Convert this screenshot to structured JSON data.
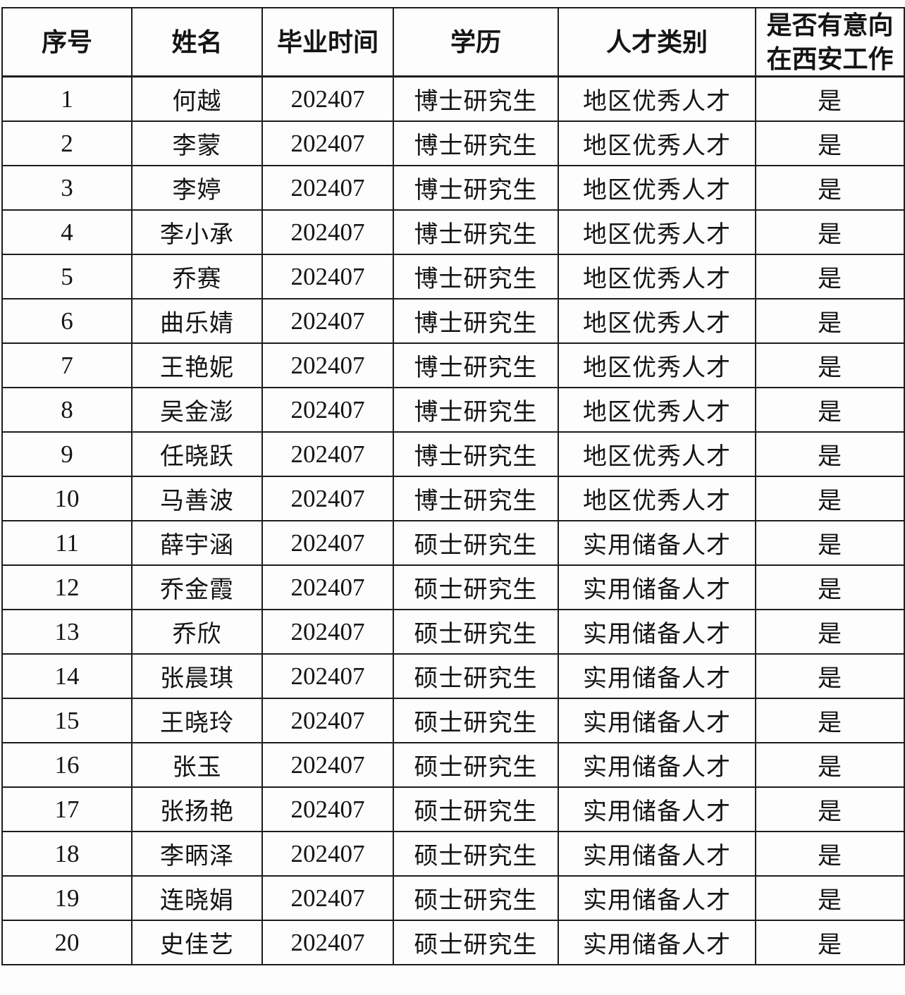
{
  "table": {
    "headers": [
      "序号",
      "姓名",
      "毕业时间",
      "学历",
      "人才类别",
      "是否有意向\n在西安工作"
    ],
    "rows": [
      [
        "1",
        "何越",
        "202407",
        "博士研究生",
        "地区优秀人才",
        "是"
      ],
      [
        "2",
        "李蒙",
        "202407",
        "博士研究生",
        "地区优秀人才",
        "是"
      ],
      [
        "3",
        "李婷",
        "202407",
        "博士研究生",
        "地区优秀人才",
        "是"
      ],
      [
        "4",
        "李小承",
        "202407",
        "博士研究生",
        "地区优秀人才",
        "是"
      ],
      [
        "5",
        "乔赛",
        "202407",
        "博士研究生",
        "地区优秀人才",
        "是"
      ],
      [
        "6",
        "曲乐婧",
        "202407",
        "博士研究生",
        "地区优秀人才",
        "是"
      ],
      [
        "7",
        "王艳妮",
        "202407",
        "博士研究生",
        "地区优秀人才",
        "是"
      ],
      [
        "8",
        "吴金澎",
        "202407",
        "博士研究生",
        "地区优秀人才",
        "是"
      ],
      [
        "9",
        "任晓跃",
        "202407",
        "博士研究生",
        "地区优秀人才",
        "是"
      ],
      [
        "10",
        "马善波",
        "202407",
        "博士研究生",
        "地区优秀人才",
        "是"
      ],
      [
        "11",
        "薛宇涵",
        "202407",
        "硕士研究生",
        "实用储备人才",
        "是"
      ],
      [
        "12",
        "乔金霞",
        "202407",
        "硕士研究生",
        "实用储备人才",
        "是"
      ],
      [
        "13",
        "乔欣",
        "202407",
        "硕士研究生",
        "实用储备人才",
        "是"
      ],
      [
        "14",
        "张晨琪",
        "202407",
        "硕士研究生",
        "实用储备人才",
        "是"
      ],
      [
        "15",
        "王晓玲",
        "202407",
        "硕士研究生",
        "实用储备人才",
        "是"
      ],
      [
        "16",
        "张玉",
        "202407",
        "硕士研究生",
        "实用储备人才",
        "是"
      ],
      [
        "17",
        "张扬艳",
        "202407",
        "硕士研究生",
        "实用储备人才",
        "是"
      ],
      [
        "18",
        "李昞泽",
        "202407",
        "硕士研究生",
        "实用储备人才",
        "是"
      ],
      [
        "19",
        "连晓娟",
        "202407",
        "硕士研究生",
        "实用储备人才",
        "是"
      ],
      [
        "20",
        "史佳艺",
        "202407",
        "硕士研究生",
        "实用储备人才",
        "是"
      ]
    ]
  }
}
